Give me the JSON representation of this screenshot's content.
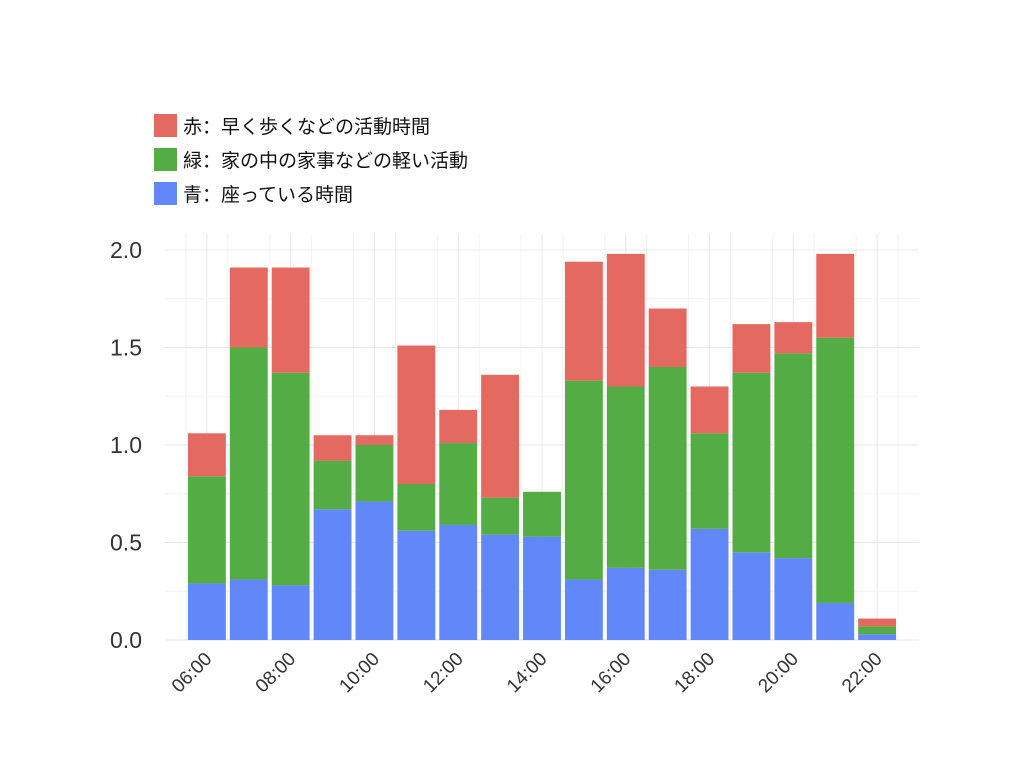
{
  "chart_data": {
    "type": "bar",
    "stacked": true,
    "x_labels": [
      "06:00",
      "08:00",
      "10:00",
      "12:00",
      "14:00",
      "16:00",
      "18:00",
      "20:00",
      "22:00"
    ],
    "x_hours": [
      6,
      7,
      8,
      9,
      10,
      11,
      12,
      13,
      14,
      15,
      16,
      17,
      18,
      19,
      20,
      21,
      22
    ],
    "x_range": [
      5,
      23
    ],
    "ylim": [
      0,
      2
    ],
    "y_ticks": [
      "0.0",
      "0.5",
      "1.0",
      "1.5",
      "2.0"
    ],
    "grid": true,
    "legend_position": "top-left",
    "series": [
      {
        "name": "青：座っている時間",
        "color": "#6287f8",
        "values": [
          0.29,
          0.31,
          0.28,
          0.67,
          0.71,
          0.56,
          0.59,
          0.54,
          0.53,
          0.31,
          0.37,
          0.36,
          0.57,
          0.45,
          0.42,
          0.19,
          0.03
        ]
      },
      {
        "name": "緑：家の中の家事などの軽い活動",
        "color": "#53ad44",
        "values": [
          0.55,
          1.19,
          1.09,
          0.25,
          0.29,
          0.24,
          0.42,
          0.19,
          0.23,
          1.02,
          0.93,
          1.04,
          0.49,
          0.92,
          1.05,
          1.36,
          0.04
        ]
      },
      {
        "name": "赤：早く歩くなどの活動時間",
        "color": "#e46961",
        "values": [
          0.22,
          0.41,
          0.54,
          0.13,
          0.05,
          0.71,
          0.17,
          0.63,
          0.0,
          0.61,
          0.68,
          0.3,
          0.24,
          0.25,
          0.16,
          0.43,
          0.04
        ]
      }
    ]
  }
}
